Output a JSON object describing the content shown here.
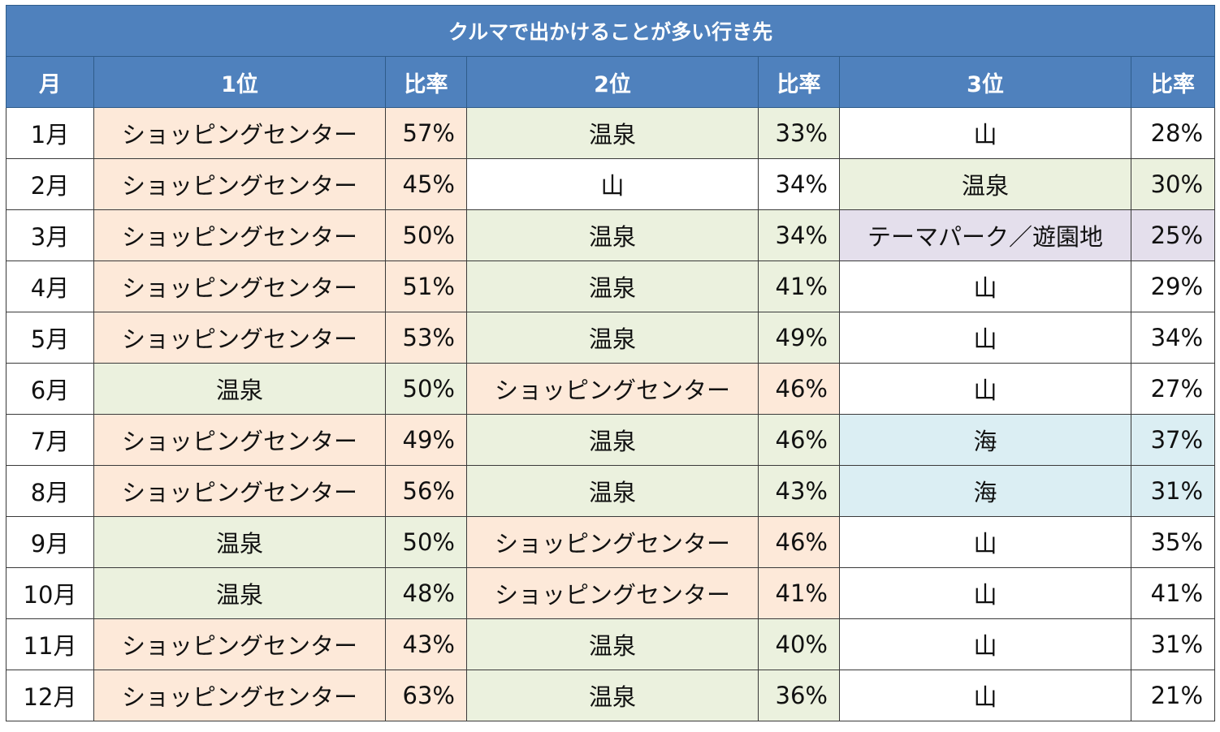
{
  "title": "クルマで出かけることが多い行き先",
  "headers": [
    "月",
    "1位",
    "比率",
    "2位",
    "比率",
    "3位",
    "比率"
  ],
  "category_colors": {
    "shopping": "#fde9d9",
    "onsen": "#ebf1de",
    "mountain": "#ffffff",
    "sea": "#dbeef3",
    "themepark": "#e4dfec",
    "header": "#4f81bd"
  },
  "rows": [
    {
      "month": "1月",
      "first": "ショッピングセンター",
      "first_rate": "57%",
      "second": "温泉",
      "second_rate": "33%",
      "third": "山",
      "third_rate": "28%"
    },
    {
      "month": "2月",
      "first": "ショッピングセンター",
      "first_rate": "45%",
      "second": "山",
      "second_rate": "34%",
      "third": "温泉",
      "third_rate": "30%"
    },
    {
      "month": "3月",
      "first": "ショッピングセンター",
      "first_rate": "50%",
      "second": "温泉",
      "second_rate": "34%",
      "third": "テーマパーク／遊園地",
      "third_rate": "25%"
    },
    {
      "month": "4月",
      "first": "ショッピングセンター",
      "first_rate": "51%",
      "second": "温泉",
      "second_rate": "41%",
      "third": "山",
      "third_rate": "29%"
    },
    {
      "month": "5月",
      "first": "ショッピングセンター",
      "first_rate": "53%",
      "second": "温泉",
      "second_rate": "49%",
      "third": "山",
      "third_rate": "34%"
    },
    {
      "month": "6月",
      "first": "温泉",
      "first_rate": "50%",
      "second": "ショッピングセンター",
      "second_rate": "46%",
      "third": "山",
      "third_rate": "27%"
    },
    {
      "month": "7月",
      "first": "ショッピングセンター",
      "first_rate": "49%",
      "second": "温泉",
      "second_rate": "46%",
      "third": "海",
      "third_rate": "37%"
    },
    {
      "month": "8月",
      "first": "ショッピングセンター",
      "first_rate": "56%",
      "second": "温泉",
      "second_rate": "43%",
      "third": "海",
      "third_rate": "31%"
    },
    {
      "month": "9月",
      "first": "温泉",
      "first_rate": "50%",
      "second": "ショッピングセンター",
      "second_rate": "46%",
      "third": "山",
      "third_rate": "35%"
    },
    {
      "month": "10月",
      "first": "温泉",
      "first_rate": "48%",
      "second": "ショッピングセンター",
      "second_rate": "41%",
      "third": "山",
      "third_rate": "41%"
    },
    {
      "month": "11月",
      "first": "ショッピングセンター",
      "first_rate": "43%",
      "second": "温泉",
      "second_rate": "40%",
      "third": "山",
      "third_rate": "31%"
    },
    {
      "month": "12月",
      "first": "ショッピングセンター",
      "first_rate": "63%",
      "second": "温泉",
      "second_rate": "36%",
      "third": "山",
      "third_rate": "21%"
    }
  ]
}
